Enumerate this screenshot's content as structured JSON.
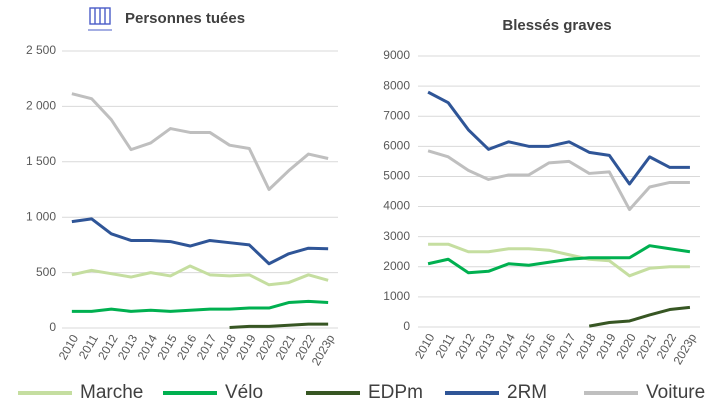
{
  "chart_data": [
    {
      "type": "line",
      "title": "Personnes tuées",
      "categories": [
        "2010",
        "2011",
        "2012",
        "2013",
        "2014",
        "2015",
        "2016",
        "2017",
        "2018",
        "2019",
        "2020",
        "2021",
        "2022",
        "2023p"
      ],
      "ylim": [
        0,
        2500
      ],
      "yticks": [
        0,
        500,
        {
          "value": 1000,
          "label": "1 000"
        },
        {
          "value": 1500,
          "label": "1 500"
        },
        {
          "value": 2000,
          "label": "2 000"
        },
        {
          "value": 2500,
          "label": "2 500"
        }
      ],
      "grid": true,
      "series": [
        {
          "name": "Marche",
          "color": "#c5dea0",
          "values": [
            480,
            520,
            490,
            460,
            500,
            470,
            560,
            480,
            470,
            480,
            390,
            410,
            480,
            430
          ]
        },
        {
          "name": "Vélo",
          "color": "#00b050",
          "values": [
            150,
            150,
            170,
            150,
            160,
            150,
            160,
            170,
            170,
            180,
            180,
            230,
            240,
            230
          ]
        },
        {
          "name": "EDPm",
          "color": "#375623",
          "values": [
            null,
            null,
            null,
            null,
            null,
            null,
            null,
            null,
            5,
            15,
            15,
            25,
            35,
            35
          ]
        },
        {
          "name": "2RM",
          "color": "#2f5597",
          "values": [
            960,
            985,
            850,
            790,
            790,
            780,
            740,
            790,
            770,
            750,
            580,
            670,
            720,
            715
          ]
        },
        {
          "name": "Voiture",
          "color": "#bfbfbf",
          "values": [
            2115,
            2070,
            1880,
            1610,
            1670,
            1800,
            1765,
            1765,
            1650,
            1620,
            1250,
            1420,
            1570,
            1530
          ]
        }
      ]
    },
    {
      "type": "line",
      "title": "Blessés graves",
      "categories": [
        "2010",
        "2011",
        "2012",
        "2013",
        "2014",
        "2015",
        "2016",
        "2017",
        "2018",
        "2019",
        "2020",
        "2021",
        "2022",
        "2023p"
      ],
      "ylim": [
        0,
        9000
      ],
      "yticks": [
        0,
        1000,
        2000,
        3000,
        4000,
        5000,
        6000,
        7000,
        8000,
        9000
      ],
      "grid": true,
      "series": [
        {
          "color": "#c5dea0",
          "values": [
            2750,
            2750,
            2500,
            2500,
            2600,
            2600,
            2550,
            2400,
            2250,
            2200,
            1700,
            1950,
            2000,
            2000
          ]
        },
        {
          "color": "#00b050",
          "values": [
            2100,
            2250,
            1800,
            1850,
            2100,
            2050,
            2150,
            2250,
            2300,
            2300,
            2300,
            2700,
            2600,
            2500
          ]
        },
        {
          "color": "#375623",
          "values": [
            null,
            null,
            null,
            null,
            null,
            null,
            null,
            null,
            30,
            150,
            200,
            400,
            580,
            650
          ]
        },
        {
          "color": "#2f5597",
          "values": [
            7800,
            7450,
            6550,
            5900,
            6150,
            6000,
            6000,
            6150,
            5800,
            5700,
            4750,
            5650,
            5300,
            5300
          ]
        },
        {
          "color": "#bfbfbf",
          "values": [
            5850,
            5650,
            5200,
            4900,
            5050,
            5050,
            5450,
            5500,
            5100,
            5150,
            3900,
            4650,
            4800,
            4800
          ]
        }
      ]
    }
  ]
}
